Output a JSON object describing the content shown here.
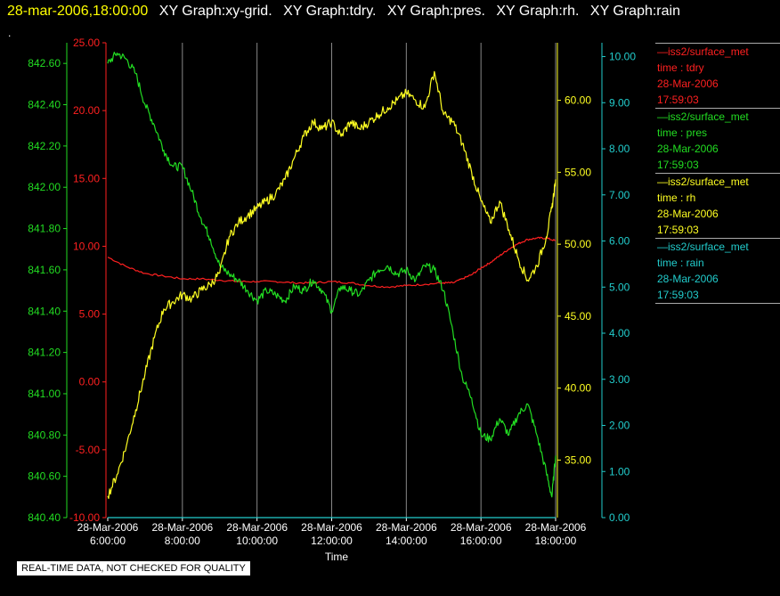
{
  "title": {
    "time": "28-mar-2006,18:00:00",
    "graphs": [
      "XY Graph:xy-grid.",
      "XY Graph:tdry.",
      "XY Graph:pres.",
      "XY Graph:rh.",
      "XY Graph:rain"
    ],
    "dot": "."
  },
  "colors": {
    "tdry": "#ff2020",
    "pres": "#22dd22",
    "rh": "#ffff22",
    "rain": "#22cccc",
    "grid": "#888888",
    "text": "#ffffff"
  },
  "legend": [
    {
      "series": "tdry",
      "lines": [
        "—iss2/surface_met",
        "time : tdry",
        "28-Mar-2006",
        "17:59:03"
      ]
    },
    {
      "series": "pres",
      "lines": [
        "—iss2/surface_met",
        "time : pres",
        "28-Mar-2006",
        "17:59:03"
      ]
    },
    {
      "series": "rh",
      "lines": [
        "—iss2/surface_met",
        "time : rh",
        "28-Mar-2006",
        "17:59:03"
      ]
    },
    {
      "series": "rain",
      "lines": [
        "—iss2/surface_met",
        "time : rain",
        "28-Mar-2006",
        "17:59:03"
      ]
    }
  ],
  "note": "REAL-TIME DATA, NOT CHECKED FOR QUALITY",
  "chart_data": {
    "type": "line",
    "xlabel": "Time",
    "x_range": [
      6,
      18
    ],
    "x_ticks": [
      {
        "x": 6,
        "date": "28-Mar-2006",
        "time": "6:00:00"
      },
      {
        "x": 8,
        "date": "28-Mar-2006",
        "time": "8:00:00"
      },
      {
        "x": 10,
        "date": "28-Mar-2006",
        "time": "10:00:00"
      },
      {
        "x": 12,
        "date": "28-Mar-2006",
        "time": "12:00:00"
      },
      {
        "x": 14,
        "date": "28-Mar-2006",
        "time": "14:00:00"
      },
      {
        "x": 16,
        "date": "28-Mar-2006",
        "time": "16:00:00"
      },
      {
        "x": 18,
        "date": "28-Mar-2006",
        "time": "18:00:00"
      }
    ],
    "grid": "vertical",
    "axes": [
      {
        "series": "pres",
        "side": "left-outer",
        "range": [
          840.4,
          842.7
        ],
        "ticks": [
          "840.40",
          "840.60",
          "840.80",
          "841.00",
          "841.20",
          "841.40",
          "841.60",
          "841.80",
          "842.00",
          "842.20",
          "842.40",
          "842.60"
        ]
      },
      {
        "series": "tdry",
        "side": "left-inner",
        "range": [
          -10,
          25
        ],
        "ticks": [
          "-10.00",
          "-5.00",
          "0.00",
          "5.00",
          "10.00",
          "15.00",
          "20.00",
          "25.00"
        ]
      },
      {
        "series": "rh",
        "side": "right-inner",
        "range": [
          31,
          64
        ],
        "ticks": [
          "35.00",
          "40.00",
          "45.00",
          "50.00",
          "55.00",
          "60.00"
        ]
      },
      {
        "series": "rain",
        "side": "right-outer",
        "range": [
          0,
          10.3
        ],
        "ticks": [
          "0.00",
          "1.00",
          "2.00",
          "3.00",
          "4.00",
          "5.00",
          "6.00",
          "7.00",
          "8.00",
          "9.00",
          "10.00"
        ]
      }
    ],
    "series": [
      {
        "key": "tdry",
        "x": [
          6,
          6.5,
          7,
          7.5,
          8,
          8.5,
          9,
          9.5,
          10,
          10.5,
          11,
          11.5,
          12,
          12.5,
          13,
          13.5,
          14,
          14.5,
          15,
          15.25,
          15.5,
          15.75,
          16,
          16.25,
          16.5,
          16.75,
          17,
          17.25,
          17.5,
          17.75,
          18
        ],
        "values": [
          9.2,
          8.5,
          8.0,
          7.8,
          7.6,
          7.6,
          7.5,
          7.4,
          7.4,
          7.4,
          7.3,
          7.3,
          7.4,
          7.3,
          7.1,
          7.0,
          7.1,
          7.2,
          7.3,
          7.3,
          7.6,
          7.9,
          8.4,
          8.8,
          9.3,
          9.8,
          10.2,
          10.5,
          10.6,
          10.6,
          10.4
        ]
      },
      {
        "key": "pres",
        "x": [
          6,
          6.25,
          6.5,
          6.75,
          7,
          7.25,
          7.5,
          7.75,
          8,
          8.25,
          8.5,
          8.75,
          9,
          9.25,
          9.5,
          9.75,
          10,
          10.25,
          10.5,
          10.75,
          11,
          11.25,
          11.5,
          11.75,
          12,
          12.25,
          12.5,
          12.75,
          13,
          13.25,
          13.5,
          13.75,
          14,
          14.25,
          14.5,
          14.75,
          15,
          15.25,
          15.5,
          15.75,
          16,
          16.25,
          16.5,
          16.75,
          17,
          17.25,
          17.5,
          17.75,
          17.9,
          18
        ],
        "values": [
          842.6,
          842.65,
          842.62,
          842.55,
          842.4,
          842.3,
          842.18,
          842.1,
          842.1,
          841.98,
          841.85,
          841.75,
          841.62,
          841.58,
          841.55,
          841.5,
          841.45,
          841.5,
          841.48,
          841.45,
          841.52,
          841.5,
          841.55,
          841.5,
          841.4,
          841.52,
          841.5,
          841.48,
          841.55,
          841.6,
          841.62,
          841.58,
          841.6,
          841.55,
          841.62,
          841.6,
          841.5,
          841.3,
          841.08,
          840.98,
          840.8,
          840.78,
          840.88,
          840.8,
          840.9,
          840.95,
          840.8,
          840.62,
          840.5,
          840.7
        ]
      },
      {
        "key": "rh",
        "x": [
          6,
          6.25,
          6.5,
          6.75,
          7,
          7.25,
          7.5,
          7.75,
          8,
          8.25,
          8.5,
          8.75,
          9,
          9.25,
          9.5,
          9.75,
          10,
          10.25,
          10.5,
          10.75,
          11,
          11.25,
          11.5,
          11.75,
          12,
          12.25,
          12.5,
          12.75,
          13,
          13.25,
          13.5,
          13.75,
          14,
          14.25,
          14.5,
          14.75,
          15,
          15.25,
          15.5,
          15.75,
          16,
          16.25,
          16.5,
          16.75,
          17,
          17.25,
          17.5,
          17.75,
          17.9,
          18
        ],
        "values": [
          32.5,
          34.0,
          36.0,
          38.5,
          41.0,
          43.5,
          45.5,
          46.0,
          46.5,
          46.2,
          46.8,
          47.2,
          48.0,
          50.5,
          51.5,
          52.0,
          52.5,
          53.0,
          53.5,
          54.5,
          56.0,
          57.5,
          58.5,
          58.0,
          58.5,
          57.5,
          58.5,
          58.0,
          58.5,
          59.0,
          59.5,
          60.0,
          60.5,
          60.0,
          59.5,
          62.0,
          59.0,
          58.5,
          57.0,
          55.0,
          53.0,
          51.5,
          53.0,
          51.0,
          49.0,
          47.5,
          48.5,
          50.5,
          52.5,
          54.5
        ]
      },
      {
        "key": "rain",
        "x": [
          6,
          18
        ],
        "values": [
          0,
          0
        ]
      }
    ]
  }
}
